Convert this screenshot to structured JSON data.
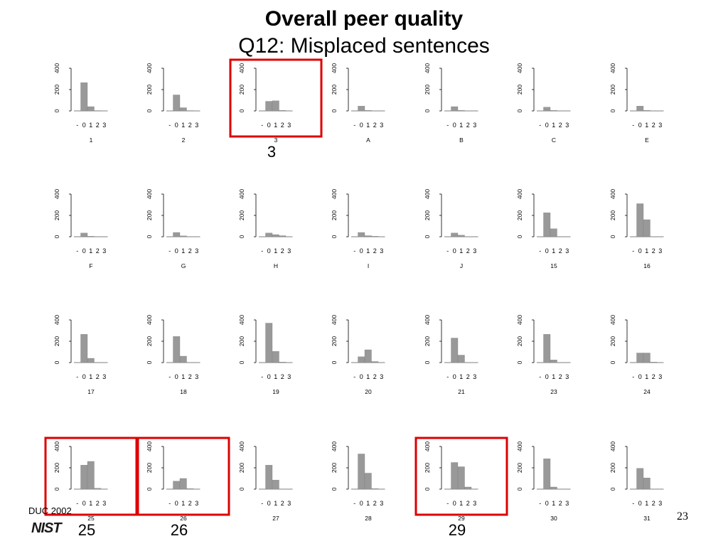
{
  "title": "Overall peer quality",
  "subtitle": "Q12: Misplaced sentences",
  "footer": {
    "org_text": "DUC 2002",
    "logo_text": "NIST",
    "page_number": "23"
  },
  "chart_data": {
    "type": "bar",
    "categories": [
      "-",
      "0",
      "1",
      "2",
      "3"
    ],
    "ylim": [
      0,
      400
    ],
    "yticks": [
      "0",
      "200",
      "400"
    ],
    "panels": [
      {
        "label": "1",
        "values": [
          0,
          265,
          40,
          3,
          0
        ]
      },
      {
        "label": "2",
        "values": [
          0,
          150,
          30,
          3,
          0
        ]
      },
      {
        "label": "3",
        "values": [
          0,
          90,
          95,
          5,
          0
        ]
      },
      {
        "label": "A",
        "values": [
          0,
          45,
          5,
          0,
          0
        ]
      },
      {
        "label": "B",
        "values": [
          0,
          40,
          5,
          0,
          0
        ]
      },
      {
        "label": "C",
        "values": [
          0,
          35,
          5,
          0,
          0
        ]
      },
      {
        "label": "E",
        "values": [
          0,
          45,
          5,
          0,
          0
        ]
      },
      {
        "label": "F",
        "values": [
          0,
          35,
          5,
          0,
          0
        ]
      },
      {
        "label": "G",
        "values": [
          0,
          40,
          8,
          0,
          0
        ]
      },
      {
        "label": "H",
        "values": [
          0,
          35,
          20,
          10,
          0
        ]
      },
      {
        "label": "I",
        "values": [
          0,
          40,
          10,
          5,
          0
        ]
      },
      {
        "label": "J",
        "values": [
          0,
          35,
          15,
          0,
          0
        ]
      },
      {
        "label": "15",
        "values": [
          0,
          225,
          75,
          0,
          0
        ]
      },
      {
        "label": "16",
        "values": [
          0,
          310,
          160,
          0,
          0
        ]
      },
      {
        "label": "17",
        "values": [
          0,
          265,
          40,
          0,
          0
        ]
      },
      {
        "label": "18",
        "values": [
          0,
          245,
          60,
          0,
          0
        ]
      },
      {
        "label": "19",
        "values": [
          0,
          370,
          105,
          5,
          0
        ]
      },
      {
        "label": "20",
        "values": [
          0,
          55,
          120,
          10,
          0
        ]
      },
      {
        "label": "21",
        "values": [
          0,
          230,
          70,
          0,
          0
        ]
      },
      {
        "label": "23",
        "values": [
          0,
          265,
          25,
          0,
          0
        ]
      },
      {
        "label": "24",
        "values": [
          0,
          90,
          90,
          5,
          0
        ]
      },
      {
        "label": "25",
        "values": [
          0,
          225,
          260,
          8,
          0
        ]
      },
      {
        "label": "26",
        "values": [
          0,
          75,
          100,
          5,
          0
        ]
      },
      {
        "label": "27",
        "values": [
          0,
          225,
          85,
          0,
          0
        ]
      },
      {
        "label": "28",
        "values": [
          0,
          330,
          150,
          5,
          0
        ]
      },
      {
        "label": "29",
        "values": [
          0,
          250,
          210,
          20,
          0
        ]
      },
      {
        "label": "30",
        "values": [
          0,
          285,
          20,
          0,
          0
        ]
      },
      {
        "label": "31",
        "values": [
          0,
          195,
          105,
          0,
          0
        ]
      }
    ],
    "highlighted": [
      {
        "label": "3",
        "annotation": "3"
      },
      {
        "label": "25",
        "annotation": "25"
      },
      {
        "label": "26",
        "annotation": "26"
      },
      {
        "label": "29",
        "annotation": "29"
      }
    ],
    "bar_color": "#999999",
    "highlight_color": "#dd0000"
  }
}
